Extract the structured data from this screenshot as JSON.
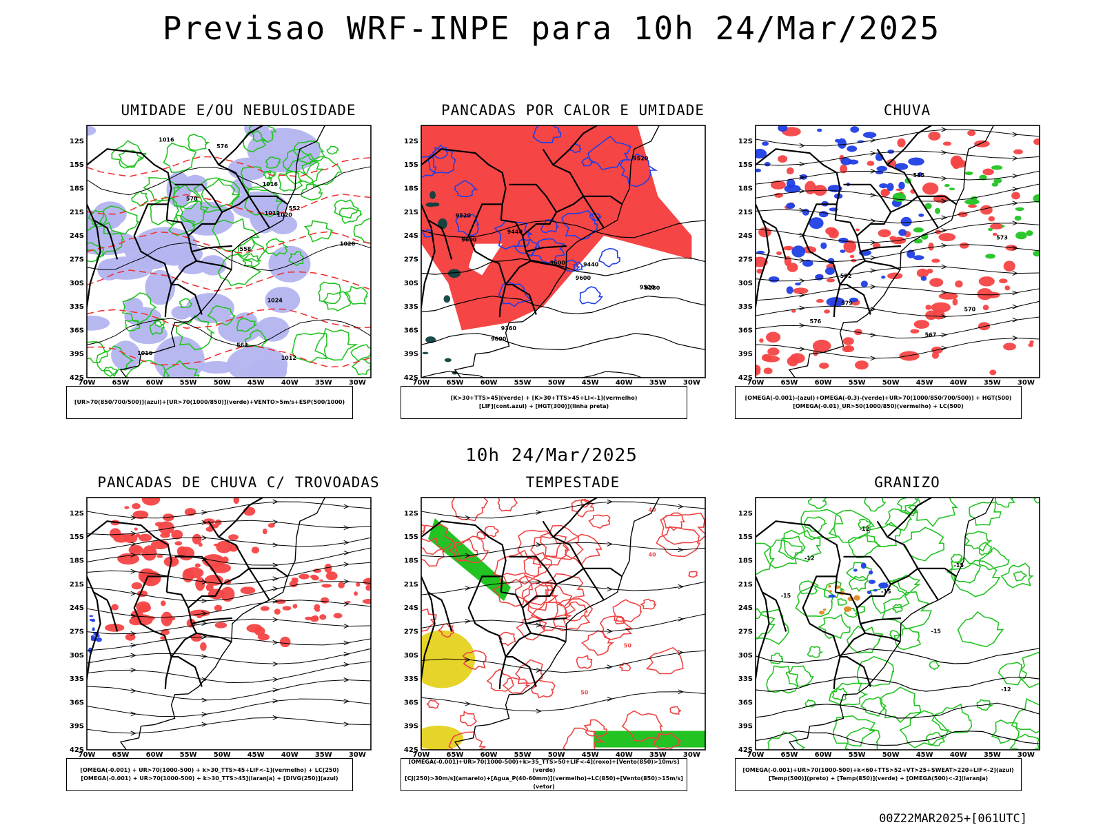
{
  "title": "Previsao WRF-INPE  para 10h 24/Mar/2025",
  "mid_title": "10h 24/Mar/2025",
  "footer": "00Z22MAR2025+[061UTC]",
  "lat_labels": [
    "12S",
    "15S",
    "18S",
    "21S",
    "24S",
    "27S",
    "30S",
    "33S",
    "36S",
    "39S",
    "42S"
  ],
  "lon_labels": [
    "70W",
    "65W",
    "60W",
    "55W",
    "50W",
    "45W",
    "40W",
    "35W",
    "30W"
  ],
  "colors": {
    "red": "#f54545",
    "green": "#22c322",
    "blue": "#1f3fe6",
    "lavender": "#b4b4f0",
    "yellow": "#e6d42a",
    "black": "#000000"
  },
  "panels": [
    {
      "title": "UMIDADE E/OU NEBULOSIDADE",
      "legend": [
        "[UR>70(850/700/500)](azul)+[UR>70(1000/850)](verde)+VENTO>5m/s+ESP(500/1000)"
      ],
      "contour_labels": [
        "1012",
        "1012",
        "1016",
        "1016",
        "1016",
        "1020",
        "1020",
        "1024",
        "570",
        "576",
        "552",
        "558",
        "564"
      ]
    },
    {
      "title": "PANCADAS POR CALOR E UMIDADE",
      "legend": [
        "[K>30+TTS>45](verde) + [K>30+TTS>45+LI<-1](vermelho)",
        "[LIF](cont.azul) + [HGT(300)](linha preta)"
      ],
      "contour_labels": [
        "9600",
        "9600",
        "9600",
        "9600",
        "9520",
        "9520",
        "9520",
        "9440",
        "9440",
        "9360",
        "9280"
      ]
    },
    {
      "title": "CHUVA",
      "legend": [
        "[OMEGA(-0.001)-(azul)+OMEGA(-0.3)-(verde)+UR>70(1000/850/700/500)] + HGT(500)",
        "[OMEGA(-0.01)_UR>50(1000/850)(vermelho) + LC(500)"
      ],
      "contour_labels": [
        "585",
        "582",
        "579",
        "576",
        "573",
        "570",
        "567"
      ]
    },
    {
      "title": "PANCADAS DE CHUVA C/ TROVOADAS",
      "legend": [
        "[OMEGA(-0.001) + UR>70(1000-500) + k>30_TTS>45+LIF<-1](vermelho) + LC(250)",
        "[OMEGA(-0.001) + UR>70(1000-500) + k>30_TTS>45](laranja) + [DIVG(250)](azul)"
      ],
      "contour_labels": []
    },
    {
      "title": "TEMPESTADE",
      "legend": [
        "[OMEGA(-0.001)+UR>70(1000-500)+k>35_TTS>50+LIF<-4](roxo)+[Vento(850)>10m/s](verde)",
        "[CJ(250)>30m/s](amarelo)+[Agua_P(40-60mm)](vermelho)+LC(850)+[Vento(850)>15m/s](vetor)"
      ],
      "contour_labels": [
        "40",
        "50",
        "50",
        "40"
      ]
    },
    {
      "title": "GRANIZO",
      "legend": [
        "[OMEGA(-0.001)+UR>70(1000-500)+k<60+TTS>52+VT>25+SWEAT>220+LIF<-2](azul)",
        "[Temp(500)](preto) + [Temp(850)](verde) + [OMEGA(500)<-2](laranja)"
      ],
      "contour_labels": [
        "-12",
        "-12",
        "-12",
        "-15",
        "-15",
        "-15",
        "-15"
      ]
    }
  ]
}
